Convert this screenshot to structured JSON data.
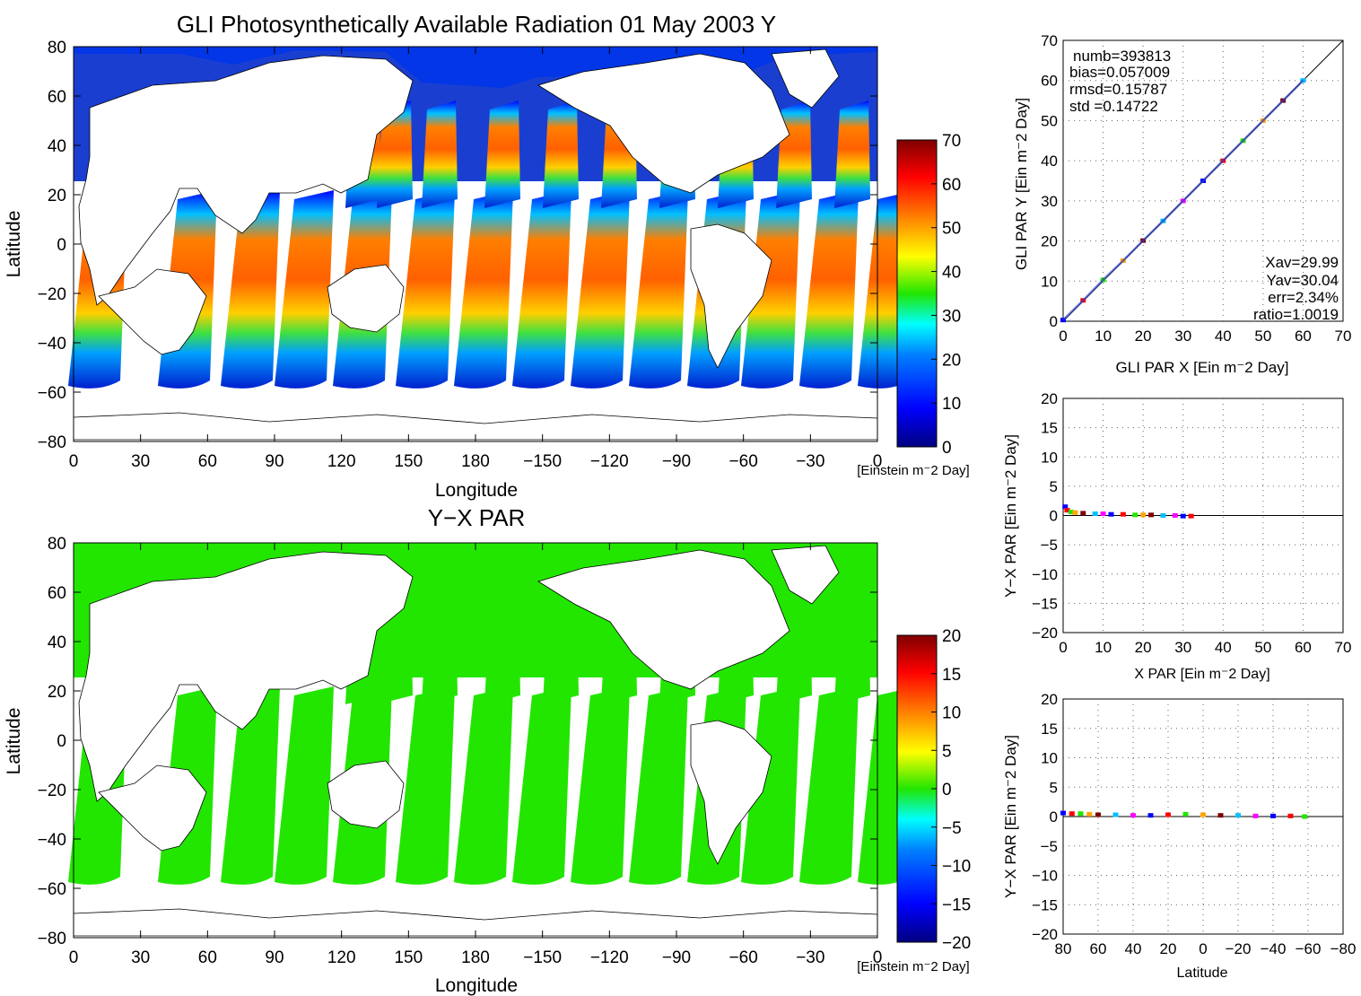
{
  "colors": {
    "ocean_green": "#22e600",
    "land": "#ffffff",
    "axis": "#000000",
    "grid": "#555555",
    "jet_stops": [
      "#00007f",
      "#0000ff",
      "#007fff",
      "#00ffff",
      "#7fff7f",
      "#ffff00",
      "#ff7f00",
      "#ff0000",
      "#7f0000"
    ]
  },
  "chart_data": [
    {
      "id": "map-top",
      "type": "heatmap",
      "title": "GLI Photosynthetically Available Radiation 01 May 2003 Y",
      "xlabel": "Longitude",
      "ylabel": "Latitude",
      "x_ticks": [
        "0",
        "30",
        "60",
        "90",
        "120",
        "150",
        "180",
        "−150",
        "−120",
        "−90",
        "−60",
        "−30",
        "0"
      ],
      "y_ticks": [
        "80",
        "60",
        "40",
        "20",
        "0",
        "−20",
        "−40",
        "−60",
        "−80"
      ],
      "ylim": [
        -80,
        80
      ],
      "colorbar": {
        "ticks": [
          "70",
          "60",
          "50",
          "40",
          "30",
          "20",
          "10",
          "0"
        ],
        "range": [
          0,
          70
        ],
        "unit": "[Einstein m⁻2 Day]"
      }
    },
    {
      "id": "map-bottom",
      "type": "heatmap",
      "title": "Y−X PAR",
      "xlabel": "Longitude",
      "ylabel": "Latitude",
      "x_ticks": [
        "0",
        "30",
        "60",
        "90",
        "120",
        "150",
        "180",
        "−150",
        "−120",
        "−90",
        "−60",
        "−30",
        "0"
      ],
      "y_ticks": [
        "80",
        "60",
        "40",
        "20",
        "0",
        "−20",
        "−40",
        "−60",
        "−80"
      ],
      "ylim": [
        -80,
        80
      ],
      "colorbar": {
        "ticks": [
          "20",
          "15",
          "10",
          "5",
          "0",
          "−5",
          "−10",
          "−15",
          "−20"
        ],
        "range": [
          -20,
          20
        ],
        "unit": "[Einstein m⁻2 Day]"
      }
    },
    {
      "id": "scatter-xy",
      "type": "scatter",
      "xlabel": "GLI PAR X [Ein m⁻2 Day]",
      "ylabel": "GLI PAR Y [Ein m⁻2 Day]",
      "xlim": [
        0,
        70
      ],
      "ylim": [
        0,
        70
      ],
      "x_ticks": [
        "0",
        "10",
        "20",
        "30",
        "40",
        "50",
        "60",
        "70"
      ],
      "y_ticks": [
        "0",
        "10",
        "20",
        "30",
        "40",
        "50",
        "60",
        "70"
      ],
      "stats": [
        "numb=393813",
        "bias=0.057009",
        "rmsd=0.15787",
        "std =0.14722"
      ],
      "stats2": [
        "Xav=29.99",
        "Yav=30.04",
        "err=2.34%",
        "ratio=1.0019"
      ],
      "one_to_one_line": [
        [
          0,
          0
        ],
        [
          70,
          70
        ]
      ],
      "points_x": [
        0,
        5,
        10,
        15,
        20,
        25,
        30,
        35,
        40,
        45,
        50,
        55,
        60
      ],
      "points_y": [
        0.3,
        5.2,
        10.3,
        15.1,
        20.1,
        25.0,
        30.0,
        35.0,
        40.0,
        45.0,
        50.0,
        55.0,
        60.0
      ]
    },
    {
      "id": "scatter-diff-x",
      "type": "scatter",
      "xlabel": "X PAR [Ein m⁻2 Day]",
      "ylabel": "Y−X PAR [Ein m⁻2 Day]",
      "xlim": [
        0,
        70
      ],
      "ylim": [
        -20,
        20
      ],
      "x_ticks": [
        "0",
        "10",
        "20",
        "30",
        "40",
        "50",
        "60",
        "70"
      ],
      "y_ticks": [
        "20",
        "15",
        "10",
        "5",
        "0",
        "−5",
        "−10",
        "−15",
        "−20"
      ],
      "points_x": [
        0.5,
        1,
        2,
        3,
        5,
        8,
        10,
        12,
        15,
        18,
        20,
        22,
        25,
        28,
        30,
        32
      ],
      "points_y": [
        1.5,
        0.9,
        0.6,
        0.5,
        0.4,
        0.3,
        0.3,
        0.2,
        0.2,
        0.1,
        0.1,
        0.1,
        0.0,
        0.0,
        -0.1,
        -0.1
      ]
    },
    {
      "id": "scatter-diff-lat",
      "type": "scatter",
      "xlabel": "Latitude",
      "ylabel": "Y−X PAR [Ein m⁻2 Day]",
      "xlim": [
        80,
        -80
      ],
      "ylim": [
        -20,
        20
      ],
      "x_ticks": [
        "80",
        "60",
        "40",
        "20",
        "0",
        "−20",
        "−40",
        "−60",
        "−80"
      ],
      "y_ticks": [
        "20",
        "15",
        "10",
        "5",
        "0",
        "−5",
        "−10",
        "−15",
        "−20"
      ],
      "points_x": [
        80,
        75,
        70,
        65,
        60,
        50,
        40,
        30,
        20,
        10,
        0,
        -10,
        -20,
        -30,
        -40,
        -50,
        -58
      ],
      "points_y": [
        0.6,
        0.5,
        0.5,
        0.4,
        0.3,
        0.3,
        0.2,
        0.2,
        0.3,
        0.4,
        0.3,
        0.2,
        0.2,
        0.1,
        0.1,
        0.1,
        0.0
      ]
    }
  ]
}
